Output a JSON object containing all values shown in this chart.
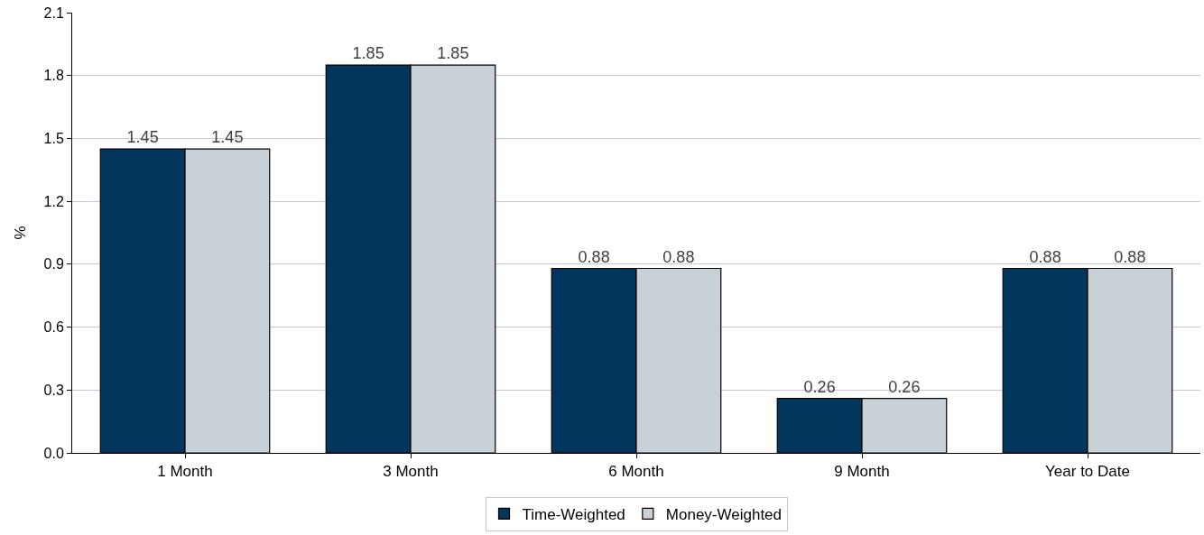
{
  "chart_data": {
    "type": "bar",
    "ylabel": "%",
    "categories": [
      "1 Month",
      "3 Month",
      "6 Month",
      "9 Month",
      "Year to Date"
    ],
    "series": [
      {
        "name": "Time-Weighted",
        "color": "#02365c",
        "values": [
          1.45,
          1.85,
          0.88,
          0.26,
          0.88
        ]
      },
      {
        "name": "Money-Weighted",
        "color": "#c8d0d8",
        "values": [
          1.45,
          1.85,
          0.88,
          0.26,
          0.88
        ]
      }
    ],
    "ylim": [
      0,
      2.1
    ],
    "yticks": [
      "0.0",
      0.3,
      0.6,
      0.9,
      1.2,
      1.5,
      1.8,
      2.1
    ],
    "grid": "y",
    "legend": "bottom",
    "data_labels": true
  }
}
